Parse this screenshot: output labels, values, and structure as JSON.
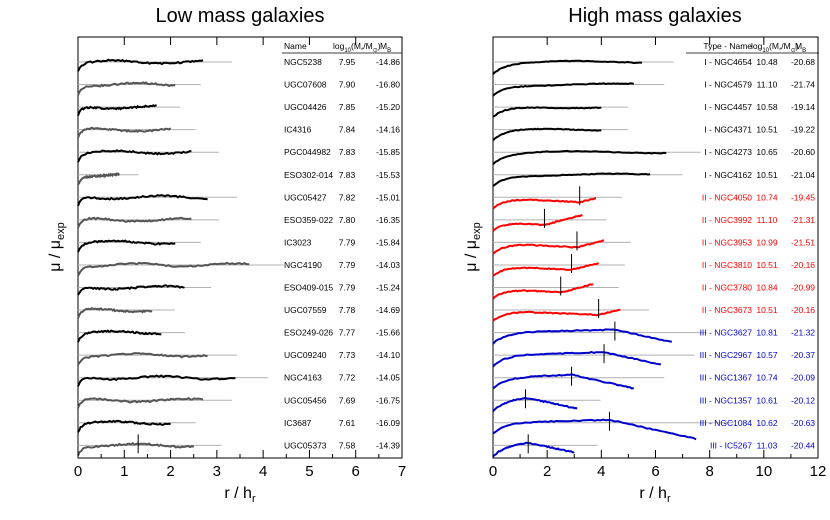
{
  "chart_data": [
    {
      "type": "line",
      "title": "Low mass galaxies",
      "xlabel": "r / h",
      "xlabel_sub": "r",
      "ylabel": "μ / μ",
      "ylabel_sub": "exp",
      "xlim": [
        0,
        7
      ],
      "xticks": [
        0,
        1,
        2,
        3,
        4,
        5,
        6,
        7
      ],
      "table_headers": {
        "col1": "Name",
        "col2_main": "log",
        "col2_sub": "10",
        "col2_paren": "(M",
        "col2_star": "*",
        "col2_slash": "/M",
        "col2_sun": "⊙",
        "col2_close": ")",
        "col3_main": "M",
        "col3_sub": "B"
      },
      "series": [
        {
          "name": "NGC5238",
          "logM": "7.95",
          "MB": "-14.86",
          "color": "#000000",
          "rmax": 2.7
        },
        {
          "name": "UGC07608",
          "logM": "7.90",
          "MB": "-16.80",
          "color": "#000000",
          "rmax": 2.1
        },
        {
          "name": "UGC04426",
          "logM": "7.85",
          "MB": "-15.20",
          "color": "#000000",
          "rmax": 1.7
        },
        {
          "name": "IC4316",
          "logM": "7.84",
          "MB": "-14.16",
          "color": "#000000",
          "rmax": 2.0
        },
        {
          "name": "PGC044982",
          "logM": "7.83",
          "MB": "-15.85",
          "color": "#000000",
          "rmax": 2.45
        },
        {
          "name": "ESO302-014",
          "logM": "7.83",
          "MB": "-15.53",
          "color": "#000000",
          "rmax": 0.9
        },
        {
          "name": "UGC05427",
          "logM": "7.82",
          "MB": "-15.01",
          "color": "#000000",
          "rmax": 2.8
        },
        {
          "name": "ESO359-022",
          "logM": "7.80",
          "MB": "-16.35",
          "color": "#000000",
          "rmax": 2.45
        },
        {
          "name": "IC3023",
          "logM": "7.79",
          "MB": "-15.84",
          "color": "#000000",
          "rmax": 2.1
        },
        {
          "name": "NGC4190",
          "logM": "7.79",
          "MB": "-14.03",
          "color": "#000000",
          "rmax": 3.7
        },
        {
          "name": "ESO409-015",
          "logM": "7.79",
          "MB": "-15.24",
          "color": "#000000",
          "rmax": 2.3
        },
        {
          "name": "UGC07559",
          "logM": "7.78",
          "MB": "-14.69",
          "color": "#000000",
          "rmax": 1.6
        },
        {
          "name": "ESO249-026",
          "logM": "7.77",
          "MB": "-15.66",
          "color": "#000000",
          "rmax": 1.8
        },
        {
          "name": "UGC09240",
          "logM": "7.73",
          "MB": "-14.10",
          "color": "#000000",
          "rmax": 2.8
        },
        {
          "name": "NGC4163",
          "logM": "7.72",
          "MB": "-14.05",
          "color": "#000000",
          "rmax": 3.4
        },
        {
          "name": "UGC05456",
          "logM": "7.69",
          "MB": "-16.75",
          "color": "#000000",
          "rmax": 2.7
        },
        {
          "name": "IC3687",
          "logM": "7.61",
          "MB": "-16.09",
          "color": "#000000",
          "rmax": 2.0
        },
        {
          "name": "UGC05373",
          "logM": "7.58",
          "MB": "-14.39",
          "color": "#000000",
          "rmax": 2.5,
          "break": 1.3
        }
      ]
    },
    {
      "type": "line",
      "title": "High mass galaxies",
      "xlabel": "r / h",
      "xlabel_sub": "r",
      "ylabel": "μ / μ",
      "ylabel_sub": "exp",
      "xlim": [
        0,
        12
      ],
      "xticks": [
        0,
        2,
        4,
        6,
        8,
        10,
        12
      ],
      "table_headers": {
        "col1": "Type - Name",
        "col2_main": "log",
        "col2_sub": "10",
        "col2_paren": "(M",
        "col2_star": "*",
        "col2_slash": "/M",
        "col2_sun": "⊙",
        "col2_close": ")",
        "col3_main": "M",
        "col3_sub": "B"
      },
      "series": [
        {
          "name": "I - NGC4654",
          "logM": "10.48",
          "MB": "-20.68",
          "color": "#000000",
          "rmax": 5.5
        },
        {
          "name": "I - NGC4579",
          "logM": "11.10",
          "MB": "-21.74",
          "color": "#000000",
          "rmax": 5.2
        },
        {
          "name": "I - NGC4457",
          "logM": "10.58",
          "MB": "-19.14",
          "color": "#000000",
          "rmax": 4.0
        },
        {
          "name": "I - NGC4371",
          "logM": "10.51",
          "MB": "-19.22",
          "color": "#000000",
          "rmax": 4.0
        },
        {
          "name": "I - NGC4273",
          "logM": "10.65",
          "MB": "-20.60",
          "color": "#000000",
          "rmax": 6.4
        },
        {
          "name": "I - NGC4162",
          "logM": "10.51",
          "MB": "-21.04",
          "color": "#000000",
          "rmax": 5.8
        },
        {
          "name": "II - NGC4050",
          "logM": "10.74",
          "MB": "-19.45",
          "color": "#ff0000",
          "rmax": 3.8,
          "break": 3.2
        },
        {
          "name": "II - NGC3992",
          "logM": "11.10",
          "MB": "-21.31",
          "color": "#ff0000",
          "rmax": 3.3,
          "break": 1.9
        },
        {
          "name": "II - NGC3953",
          "logM": "10.99",
          "MB": "-21.51",
          "color": "#ff0000",
          "rmax": 4.1,
          "break": 3.1
        },
        {
          "name": "II - NGC3810",
          "logM": "10.51",
          "MB": "-20.16",
          "color": "#ff0000",
          "rmax": 3.9,
          "break": 2.9
        },
        {
          "name": "II - NGC3780",
          "logM": "10.84",
          "MB": "-20.99",
          "color": "#ff0000",
          "rmax": 3.7,
          "break": 2.5
        },
        {
          "name": "II - NGC3673",
          "logM": "10.51",
          "MB": "-20.16",
          "color": "#ff0000",
          "rmax": 4.7,
          "break": 3.9
        },
        {
          "name": "III - NGC3627",
          "logM": "10.81",
          "MB": "-21.32",
          "color": "#0000cc",
          "rmax": 6.6,
          "break": 4.5
        },
        {
          "name": "III - NGC2967",
          "logM": "10.57",
          "MB": "-20.37",
          "color": "#0000cc",
          "rmax": 6.2,
          "break": 4.1
        },
        {
          "name": "III - NGC1367",
          "logM": "10.74",
          "MB": "-20.09",
          "color": "#0000cc",
          "rmax": 5.2,
          "break": 2.9
        },
        {
          "name": "III - NGC1357",
          "logM": "10.61",
          "MB": "-20.12",
          "color": "#0000cc",
          "rmax": 3.1,
          "break": 1.2
        },
        {
          "name": "III - NGC1084",
          "logM": "10.62",
          "MB": "-20.63",
          "color": "#0000cc",
          "rmax": 7.5,
          "break": 4.3
        },
        {
          "name": "III - IC5267",
          "logM": "11.03",
          "MB": "-20.44",
          "color": "#0000cc",
          "rmax": 3.0,
          "break": 1.3
        }
      ]
    }
  ]
}
